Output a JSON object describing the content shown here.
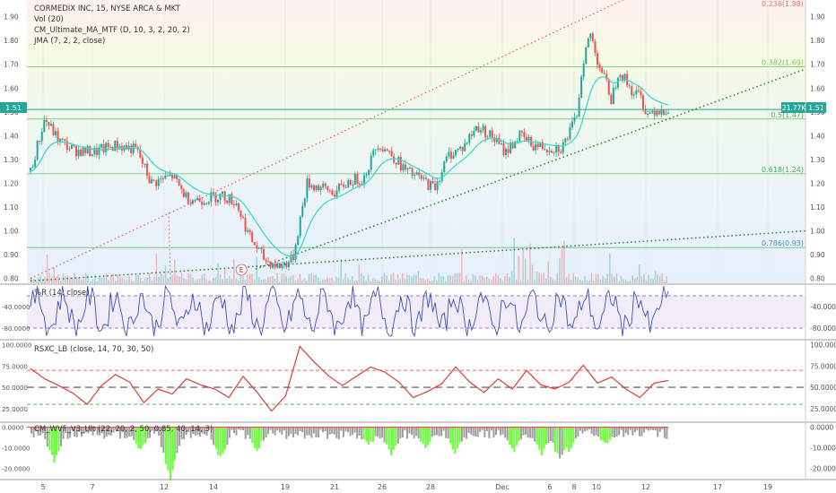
{
  "instrument": {
    "header": "CORMEDIX INC, 15, NYSE ARCA & MKT",
    "indicators": [
      "Vol (20)",
      "CM_Ultimate_MA_MTF (D, 10, 3, 2, 20, 2)",
      "JMA (7, 2, 2, close)"
    ],
    "last_price": "1.51",
    "last_volume": "21.77K"
  },
  "colors": {
    "candle_up": "#26a69a",
    "candle_down": "#ef5350",
    "ma_line": "#3fd7cf",
    "fib_line": "#4caf50",
    "trend_dotted": "#2e7d32",
    "channel_dotted": "#ef5350",
    "wr_line": "#3f51b5",
    "rsx_line": "#e53935",
    "vix_bar": "#9e9e9e",
    "vix_highlight": "#66ff33",
    "price_badge": "#26a69a"
  },
  "chart_data": [
    {
      "type": "candlestick",
      "title": "CORMEDIX INC, 15, NYSE ARCA & MKT",
      "ylim": [
        0.78,
        1.97
      ],
      "y_ticks": [
        "1.90",
        "1.80",
        "1.70",
        "1.60",
        "1.50",
        "1.40",
        "1.30",
        "1.20",
        "1.10",
        "1.00",
        "0.90",
        "0.80"
      ],
      "x_ticks": [
        "5",
        "7",
        "12",
        "14",
        "19",
        "21",
        "26",
        "28",
        "Dec",
        "6",
        "8",
        "10",
        "12",
        "17",
        "19"
      ],
      "series_points": [
        [
          0,
          1.25
        ],
        [
          2,
          1.47
        ],
        [
          4,
          1.38
        ],
        [
          6,
          1.34
        ],
        [
          9,
          1.33
        ],
        [
          12,
          1.36
        ],
        [
          15,
          1.34
        ],
        [
          17,
          1.2
        ],
        [
          20,
          1.23
        ],
        [
          22,
          1.14
        ],
        [
          24,
          1.13
        ],
        [
          27,
          1.15
        ],
        [
          29,
          1.12
        ],
        [
          31,
          0.97
        ],
        [
          33,
          0.88
        ],
        [
          35,
          0.85
        ],
        [
          37,
          0.88
        ],
        [
          39,
          1.2
        ],
        [
          41,
          1.18
        ],
        [
          43,
          1.16
        ],
        [
          45,
          1.21
        ],
        [
          47,
          1.22
        ],
        [
          49,
          1.37
        ],
        [
          51,
          1.32
        ],
        [
          53,
          1.25
        ],
        [
          55,
          1.22
        ],
        [
          57,
          1.18
        ],
        [
          59,
          1.32
        ],
        [
          61,
          1.35
        ],
        [
          63,
          1.44
        ],
        [
          65,
          1.4
        ],
        [
          67,
          1.33
        ],
        [
          69,
          1.4
        ],
        [
          71,
          1.36
        ],
        [
          73,
          1.35
        ],
        [
          75,
          1.35
        ],
        [
          77,
          1.47
        ],
        [
          78,
          1.72
        ],
        [
          79,
          1.83
        ],
        [
          80,
          1.72
        ],
        [
          81,
          1.64
        ],
        [
          82,
          1.55
        ],
        [
          83,
          1.68
        ],
        [
          84,
          1.63
        ],
        [
          85,
          1.58
        ],
        [
          86,
          1.57
        ],
        [
          87,
          1.49
        ],
        [
          88,
          1.51
        ],
        [
          90,
          1.51
        ]
      ],
      "fib_levels": [
        {
          "label": "0.236(1.98)",
          "value": 1.975
        },
        {
          "label": "0.382(1.69)",
          "value": 1.69
        },
        {
          "label": "0.5(1.47)",
          "value": 1.47
        },
        {
          "label": "0.618(1.24)",
          "value": 1.24
        },
        {
          "label": "0.786(0.93)",
          "value": 0.93
        }
      ],
      "price_line": 1.51,
      "earnings_marker": {
        "label": "E",
        "x": 28
      },
      "volume_max": 120
    },
    {
      "type": "line",
      "title": "%R (14, close)",
      "ylim": [
        -100,
        0
      ],
      "y_ticks": [
        "-40.0000",
        "-80.0000"
      ],
      "bands": [
        -20,
        -80
      ],
      "range": [
        -95,
        -2
      ]
    },
    {
      "type": "line",
      "title": "RSXC_LB (close, 14, 70, 30, 50)",
      "ylim": [
        10,
        105
      ],
      "y_ticks": [
        "100.0000",
        "75.0000",
        "50.0000",
        "25.0000"
      ],
      "levels": {
        "upper": 70,
        "middle": 50,
        "lower": 30
      },
      "series_points": [
        [
          0,
          72
        ],
        [
          2,
          60
        ],
        [
          4,
          52
        ],
        [
          6,
          43
        ],
        [
          8,
          30
        ],
        [
          10,
          52
        ],
        [
          12,
          65
        ],
        [
          14,
          56
        ],
        [
          16,
          32
        ],
        [
          18,
          48
        ],
        [
          20,
          42
        ],
        [
          22,
          60
        ],
        [
          24,
          53
        ],
        [
          26,
          48
        ],
        [
          28,
          38
        ],
        [
          30,
          63
        ],
        [
          32,
          44
        ],
        [
          34,
          22
        ],
        [
          36,
          40
        ],
        [
          38,
          98
        ],
        [
          40,
          80
        ],
        [
          42,
          64
        ],
        [
          44,
          52
        ],
        [
          46,
          63
        ],
        [
          48,
          74
        ],
        [
          50,
          68
        ],
        [
          52,
          56
        ],
        [
          54,
          38
        ],
        [
          56,
          45
        ],
        [
          58,
          54
        ],
        [
          60,
          74
        ],
        [
          62,
          56
        ],
        [
          64,
          44
        ],
        [
          66,
          60
        ],
        [
          68,
          48
        ],
        [
          70,
          70
        ],
        [
          72,
          53
        ],
        [
          74,
          48
        ],
        [
          76,
          56
        ],
        [
          78,
          76
        ],
        [
          80,
          55
        ],
        [
          82,
          62
        ],
        [
          84,
          48
        ],
        [
          86,
          38
        ],
        [
          88,
          55
        ],
        [
          90,
          58
        ]
      ]
    },
    {
      "type": "bar",
      "title": "CM_WVF_V3_Ult (22, 20, 2, 50, 0.85, 40, 14, 3)",
      "ylim": [
        -25,
        2
      ],
      "y_ticks": [
        "0.0000",
        "-10.0000",
        "-20.0000"
      ]
    }
  ]
}
